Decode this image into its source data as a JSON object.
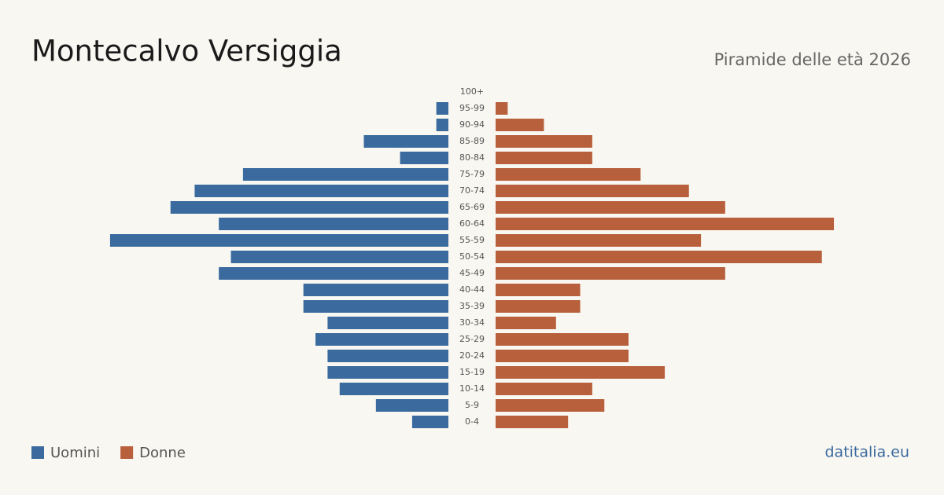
{
  "chart_data": {
    "type": "pyramid",
    "title": "Montecalvo  Versiggia",
    "subtitle": "Piramide delle età 2026",
    "source": "datitalia.eu",
    "categories": [
      "100+",
      "95-99",
      "90-94",
      "85-89",
      "80-84",
      "75-79",
      "70-74",
      "65-69",
      "60-64",
      "55-59",
      "50-54",
      "45-49",
      "40-44",
      "35-39",
      "30-34",
      "25-29",
      "20-24",
      "15-19",
      "10-14",
      "5-9",
      "0-4"
    ],
    "series": [
      {
        "name": "Uomini",
        "color": "#3a6a9e",
        "values": [
          0,
          1,
          1,
          7,
          4,
          17,
          21,
          23,
          19,
          28,
          18,
          19,
          12,
          12,
          10,
          11,
          10,
          10,
          9,
          6,
          3
        ]
      },
      {
        "name": "Donne",
        "color": "#b85f3c",
        "values": [
          0,
          1,
          4,
          8,
          8,
          12,
          16,
          19,
          28,
          17,
          27,
          19,
          7,
          7,
          5,
          11,
          11,
          14,
          8,
          9,
          6
        ]
      }
    ]
  }
}
